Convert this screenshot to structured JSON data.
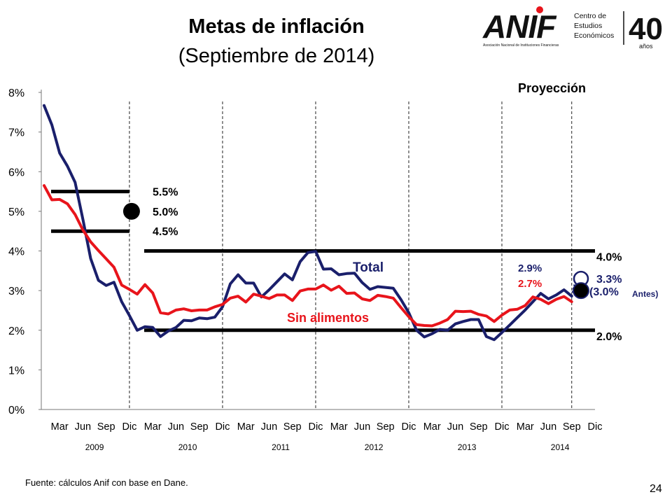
{
  "title": "Metas de inflación",
  "subtitle": "(Septiembre de 2014)",
  "logo": {
    "name": "ANIF",
    "line1": "Centro de",
    "line2": "Estudios",
    "line3": "Económicos",
    "tagline": "Asociación Nacional de Instituciones Financieras",
    "anniversary": "40",
    "anniversary_sub": "años"
  },
  "source": "Fuente: cálculos Anif con base en Dane.",
  "page_number": "24",
  "colors": {
    "total": "#1a1f6b",
    "sin_alimentos": "#e8141b",
    "target": "#000000",
    "projection_dots": "#1a1f6b"
  },
  "chart_data": {
    "type": "line",
    "ylim": [
      0,
      8
    ],
    "y_ticks": [
      "0%",
      "1%",
      "2%",
      "3%",
      "4%",
      "5%",
      "6%",
      "7%",
      "8%"
    ],
    "x_tick_labels": [
      "Mar",
      "Jun",
      "Sep",
      "Dic",
      "Mar",
      "Jun",
      "Sep",
      "Dic",
      "Mar",
      "Jun",
      "Sep",
      "Dic",
      "Mar",
      "Jun",
      "Sep",
      "Dic",
      "Mar",
      "Jun",
      "Sep",
      "Dic",
      "Mar",
      "Jun",
      "Sep",
      "Dic"
    ],
    "year_labels": [
      "2009",
      "2010",
      "2011",
      "2012",
      "2013",
      "2014"
    ],
    "x_start": "2009-01",
    "x_end": "2014-12",
    "dividers": [
      "2009-12",
      "2010-12",
      "2011-12",
      "2012-12",
      "2013-12",
      "2014-09"
    ],
    "series": [
      {
        "name": "Total",
        "values": [
          7.67,
          7.18,
          6.47,
          6.14,
          5.73,
          4.8,
          3.81,
          3.26,
          3.13,
          3.21,
          2.72,
          2.37,
          2.0,
          2.09,
          2.07,
          1.84,
          1.98,
          2.07,
          2.25,
          2.24,
          2.31,
          2.29,
          2.33,
          2.59,
          3.17,
          3.4,
          3.19,
          3.19,
          2.84,
          3.02,
          3.22,
          3.42,
          3.27,
          3.73,
          3.96,
          3.99,
          3.54,
          3.55,
          3.4,
          3.43,
          3.44,
          3.2,
          3.03,
          3.1,
          3.08,
          3.06,
          2.77,
          2.44,
          2.0,
          1.83,
          1.91,
          2.02,
          2.0,
          2.16,
          2.22,
          2.27,
          2.27,
          1.84,
          1.76,
          1.94,
          2.13,
          2.32,
          2.51,
          2.72,
          2.93,
          2.79,
          2.89,
          3.02,
          2.86
        ]
      },
      {
        "name": "Sin alimentos",
        "values": [
          5.65,
          5.29,
          5.3,
          5.19,
          4.92,
          4.53,
          4.23,
          4.01,
          3.8,
          3.59,
          3.14,
          3.03,
          2.91,
          3.15,
          2.94,
          2.44,
          2.41,
          2.51,
          2.54,
          2.49,
          2.51,
          2.51,
          2.59,
          2.65,
          2.81,
          2.86,
          2.71,
          2.91,
          2.86,
          2.8,
          2.89,
          2.89,
          2.75,
          2.99,
          3.04,
          3.04,
          3.14,
          3.01,
          3.11,
          2.93,
          2.94,
          2.79,
          2.75,
          2.88,
          2.85,
          2.81,
          2.57,
          2.34,
          2.14,
          2.12,
          2.11,
          2.18,
          2.27,
          2.48,
          2.47,
          2.48,
          2.4,
          2.36,
          2.22,
          2.38,
          2.51,
          2.53,
          2.62,
          2.84,
          2.78,
          2.67,
          2.78,
          2.85,
          2.72
        ]
      }
    ],
    "targets": [
      {
        "label": "5.5%",
        "value": 5.5,
        "from": "2009-01",
        "to": "2009-12"
      },
      {
        "label": "5.0%",
        "value": 5.0,
        "at": "2009-12"
      },
      {
        "label": "4.5%",
        "value": 4.5,
        "from": "2009-01",
        "to": "2009-12"
      },
      {
        "label": "4.0%",
        "value": 4.0,
        "from": "2010-01",
        "to": "2014-12"
      },
      {
        "label": "2.0%",
        "value": 2.0,
        "from": "2010-01",
        "to": "2014-12"
      }
    ],
    "annotations": {
      "total_label": "Total",
      "sin_alimentos_label": "Sin alimentos",
      "projection_label": "Proyección",
      "last_total": "2.9%",
      "last_sin_alimentos": "2.7%",
      "projection_new": "3.3%",
      "projection_new_value": 3.3,
      "projection_old": "(3.0%",
      "projection_old_value": 3.0,
      "projection_old_note": "Antes)"
    }
  }
}
